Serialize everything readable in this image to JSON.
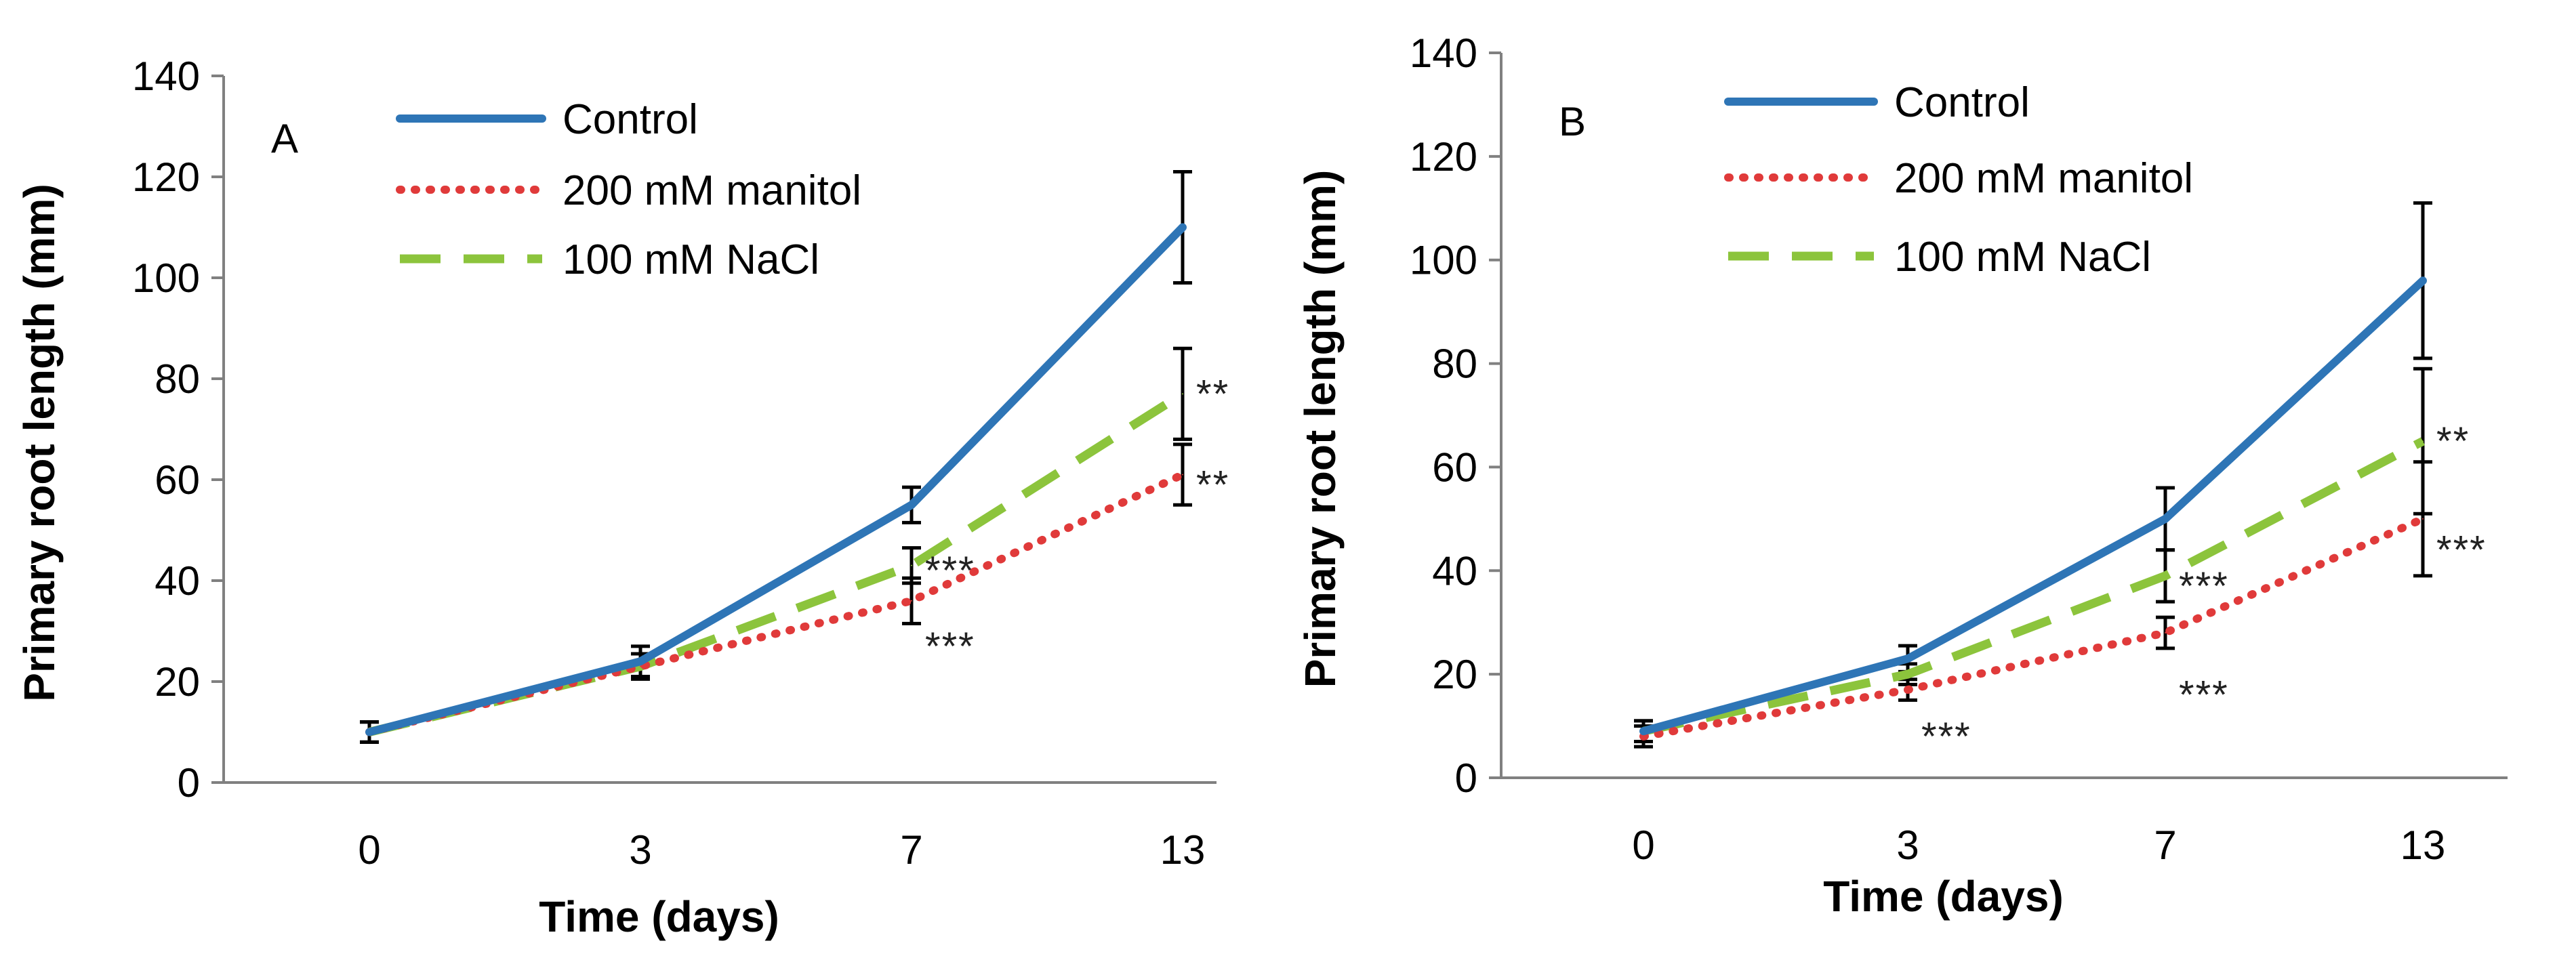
{
  "chart_data": [
    {
      "type": "line",
      "panel_label": "A",
      "title": "",
      "xlabel": "Time (days)",
      "ylabel": "Primary root length (mm)",
      "categories": [
        "0",
        "3",
        "7",
        "13"
      ],
      "ylim": [
        0,
        140
      ],
      "yticks": [
        "0",
        "20",
        "40",
        "60",
        "80",
        "100",
        "120",
        "140"
      ],
      "grid": false,
      "legend_position": "top-left",
      "series": [
        {
          "name": "Control",
          "style": "solid",
          "color": "#2E75B6",
          "values": [
            10,
            24,
            55,
            110
          ],
          "errors": [
            2,
            3,
            3.5,
            11
          ]
        },
        {
          "name": "200 mM manitol",
          "style": "dotted",
          "color": "#E03A3A",
          "values": [
            10,
            23,
            36,
            61
          ],
          "errors": [
            2,
            2.5,
            4.5,
            6
          ]
        },
        {
          "name": "100 mM NaCl",
          "style": "dashed",
          "color": "#8CC43C",
          "values": [
            10,
            23,
            43,
            77
          ],
          "errors": [
            2,
            2.5,
            3.5,
            9
          ]
        }
      ],
      "annotations": [
        {
          "text": "***",
          "x": "7",
          "y": 42
        },
        {
          "text": "***",
          "x": "7",
          "y": 27
        },
        {
          "text": "**",
          "x": "13",
          "y": 77
        },
        {
          "text": "**",
          "x": "13",
          "y": 59
        }
      ]
    },
    {
      "type": "line",
      "panel_label": "B",
      "title": "",
      "xlabel": "Time (days)",
      "ylabel": "Primary root length (mm)",
      "categories": [
        "0",
        "3",
        "7",
        "13"
      ],
      "ylim": [
        0,
        140
      ],
      "yticks": [
        "0",
        "20",
        "40",
        "60",
        "80",
        "100",
        "120",
        "140"
      ],
      "grid": false,
      "legend_position": "top-left",
      "series": [
        {
          "name": "Control",
          "style": "solid",
          "color": "#2E75B6",
          "values": [
            9,
            23,
            50,
            96
          ],
          "errors": [
            2,
            2.5,
            6,
            15
          ]
        },
        {
          "name": "200 mM manitol",
          "style": "dotted",
          "color": "#E03A3A",
          "values": [
            8,
            17,
            28,
            50
          ],
          "errors": [
            2,
            2,
            3,
            11
          ]
        },
        {
          "name": "100 mM NaCl",
          "style": "dashed",
          "color": "#8CC43C",
          "values": [
            9,
            20,
            39,
            65
          ],
          "errors": [
            2,
            2,
            5,
            14
          ]
        }
      ],
      "annotations": [
        {
          "text": "***",
          "x": "3",
          "y": 8
        },
        {
          "text": "***",
          "x": "7",
          "y": 37
        },
        {
          "text": "***",
          "x": "7",
          "y": 16
        },
        {
          "text": "**",
          "x": "13",
          "y": 65
        },
        {
          "text": "***",
          "x": "13",
          "y": 44
        }
      ]
    }
  ]
}
